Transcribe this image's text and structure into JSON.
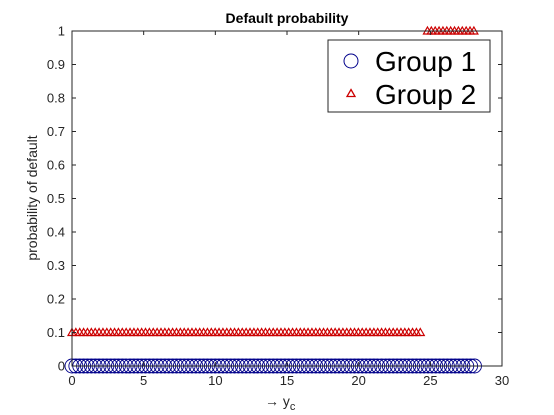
{
  "chart_data": {
    "type": "scatter",
    "title": "Default probability",
    "xlabel": "→ y",
    "xlabel_subscript": "c",
    "ylabel": "probability of default",
    "xlim": [
      0,
      30
    ],
    "ylim": [
      0,
      1
    ],
    "xticks": [
      "0",
      "5",
      "10",
      "15",
      "20",
      "25",
      "30"
    ],
    "yticks": [
      "0",
      "0.1",
      "0.2",
      "0.3",
      "0.4",
      "0.5",
      "0.6",
      "0.7",
      "0.8",
      "0.9",
      "1"
    ],
    "grid": false,
    "legend_position": "top-right",
    "series": [
      {
        "name": "Group 1",
        "marker": "circle",
        "color": "#00008b",
        "segments": [
          {
            "x_start": 0,
            "x_end": 28.2,
            "y": 0
          }
        ]
      },
      {
        "name": "Group 2",
        "marker": "triangle",
        "color": "#cc0000",
        "segments": [
          {
            "x_start": 0,
            "x_end": 24.4,
            "y": 0.1
          },
          {
            "x_start": 24.8,
            "x_end": 28.2,
            "y": 1
          }
        ]
      }
    ]
  }
}
